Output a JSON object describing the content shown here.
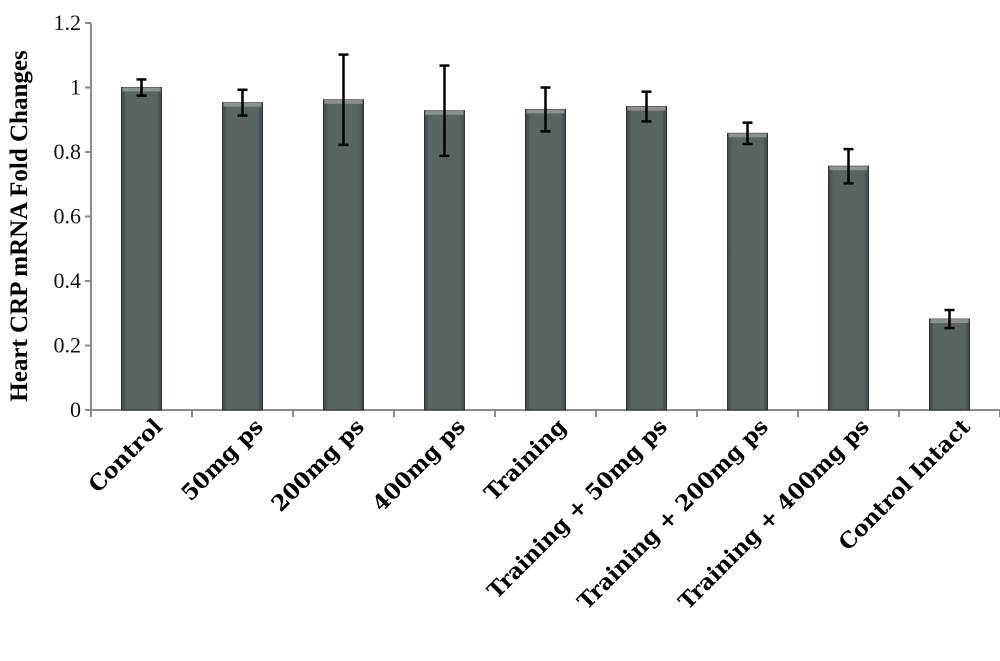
{
  "chart_data": {
    "type": "bar",
    "title": "",
    "xlabel": "",
    "ylabel": "Heart CRP mRNA Fold Changes",
    "ylim": [
      0,
      1.2
    ],
    "yticks": [
      "0",
      "0.2",
      "0.4",
      "0.6",
      "0.8",
      "1",
      "1.2"
    ],
    "grid": false,
    "legend": "none",
    "bar_color": "#5b6464",
    "categories": [
      "Control",
      "50mg ps",
      "200mg ps",
      "400mg ps",
      "Training",
      "Training + 50mg ps",
      "Training + 200mg ps",
      "Training + 400mg ps",
      "Control Intact"
    ],
    "values": [
      1.0,
      0.953,
      0.962,
      0.928,
      0.932,
      0.941,
      0.858,
      0.756,
      0.282
    ],
    "error": [
      0.025,
      0.04,
      0.14,
      0.14,
      0.068,
      0.046,
      0.033,
      0.053,
      0.028
    ]
  }
}
